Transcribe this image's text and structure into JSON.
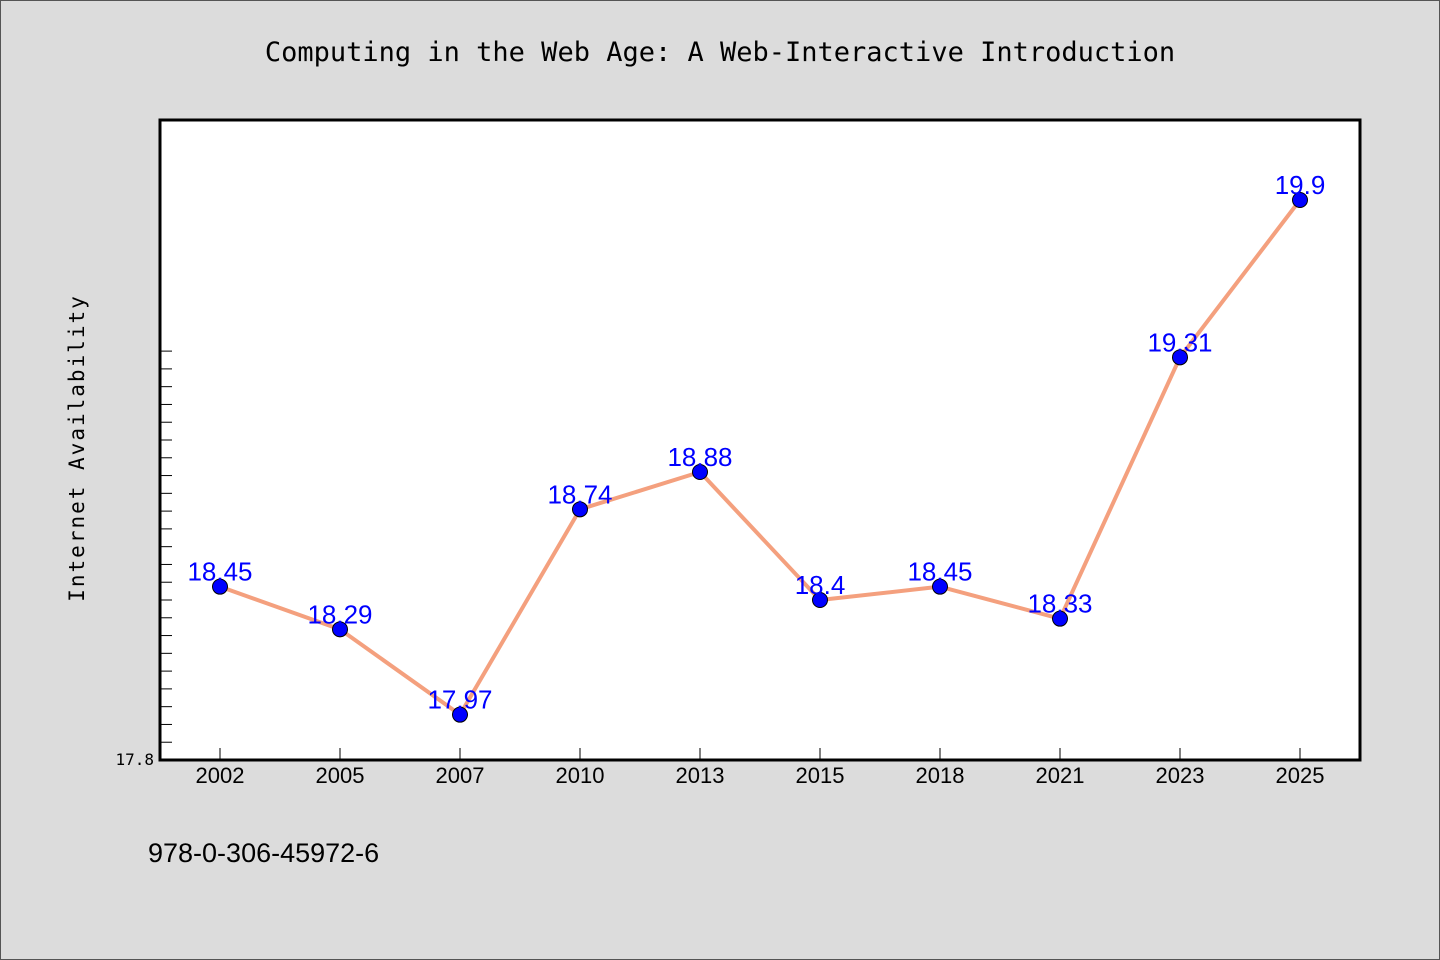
{
  "chart_data": {
    "type": "line",
    "title": "Computing in the Web Age: A Web-Interactive Introduction",
    "xlabel": "",
    "ylabel": "Internet Availability",
    "categories": [
      "2002",
      "2005",
      "2007",
      "2010",
      "2013",
      "2015",
      "2018",
      "2021",
      "2023",
      "2025"
    ],
    "series": [
      {
        "values": [
          18.45,
          18.29,
          17.97,
          18.74,
          18.88,
          18.4,
          18.45,
          18.33,
          19.31,
          19.9
        ],
        "labels": [
          "18.45",
          "18.29",
          "17.97",
          "18.74",
          "18.88",
          "18.4",
          "18.45",
          "18.33",
          "19.31",
          "19.9"
        ],
        "line_color": "#f4a07e",
        "marker_color": "#0000ff"
      }
    ],
    "ylim": [
      17.8,
      20.2
    ],
    "ytick_labels": [
      "17.8"
    ],
    "grid": false,
    "legend": "none"
  },
  "footer": {
    "isbn": "978-0-306-45972-6"
  },
  "colors": {
    "background": "#dcdcdc",
    "plot_background": "#ffffff",
    "line": "#f4a07e",
    "marker": "#0000ff",
    "data_label": "#0000ff"
  }
}
